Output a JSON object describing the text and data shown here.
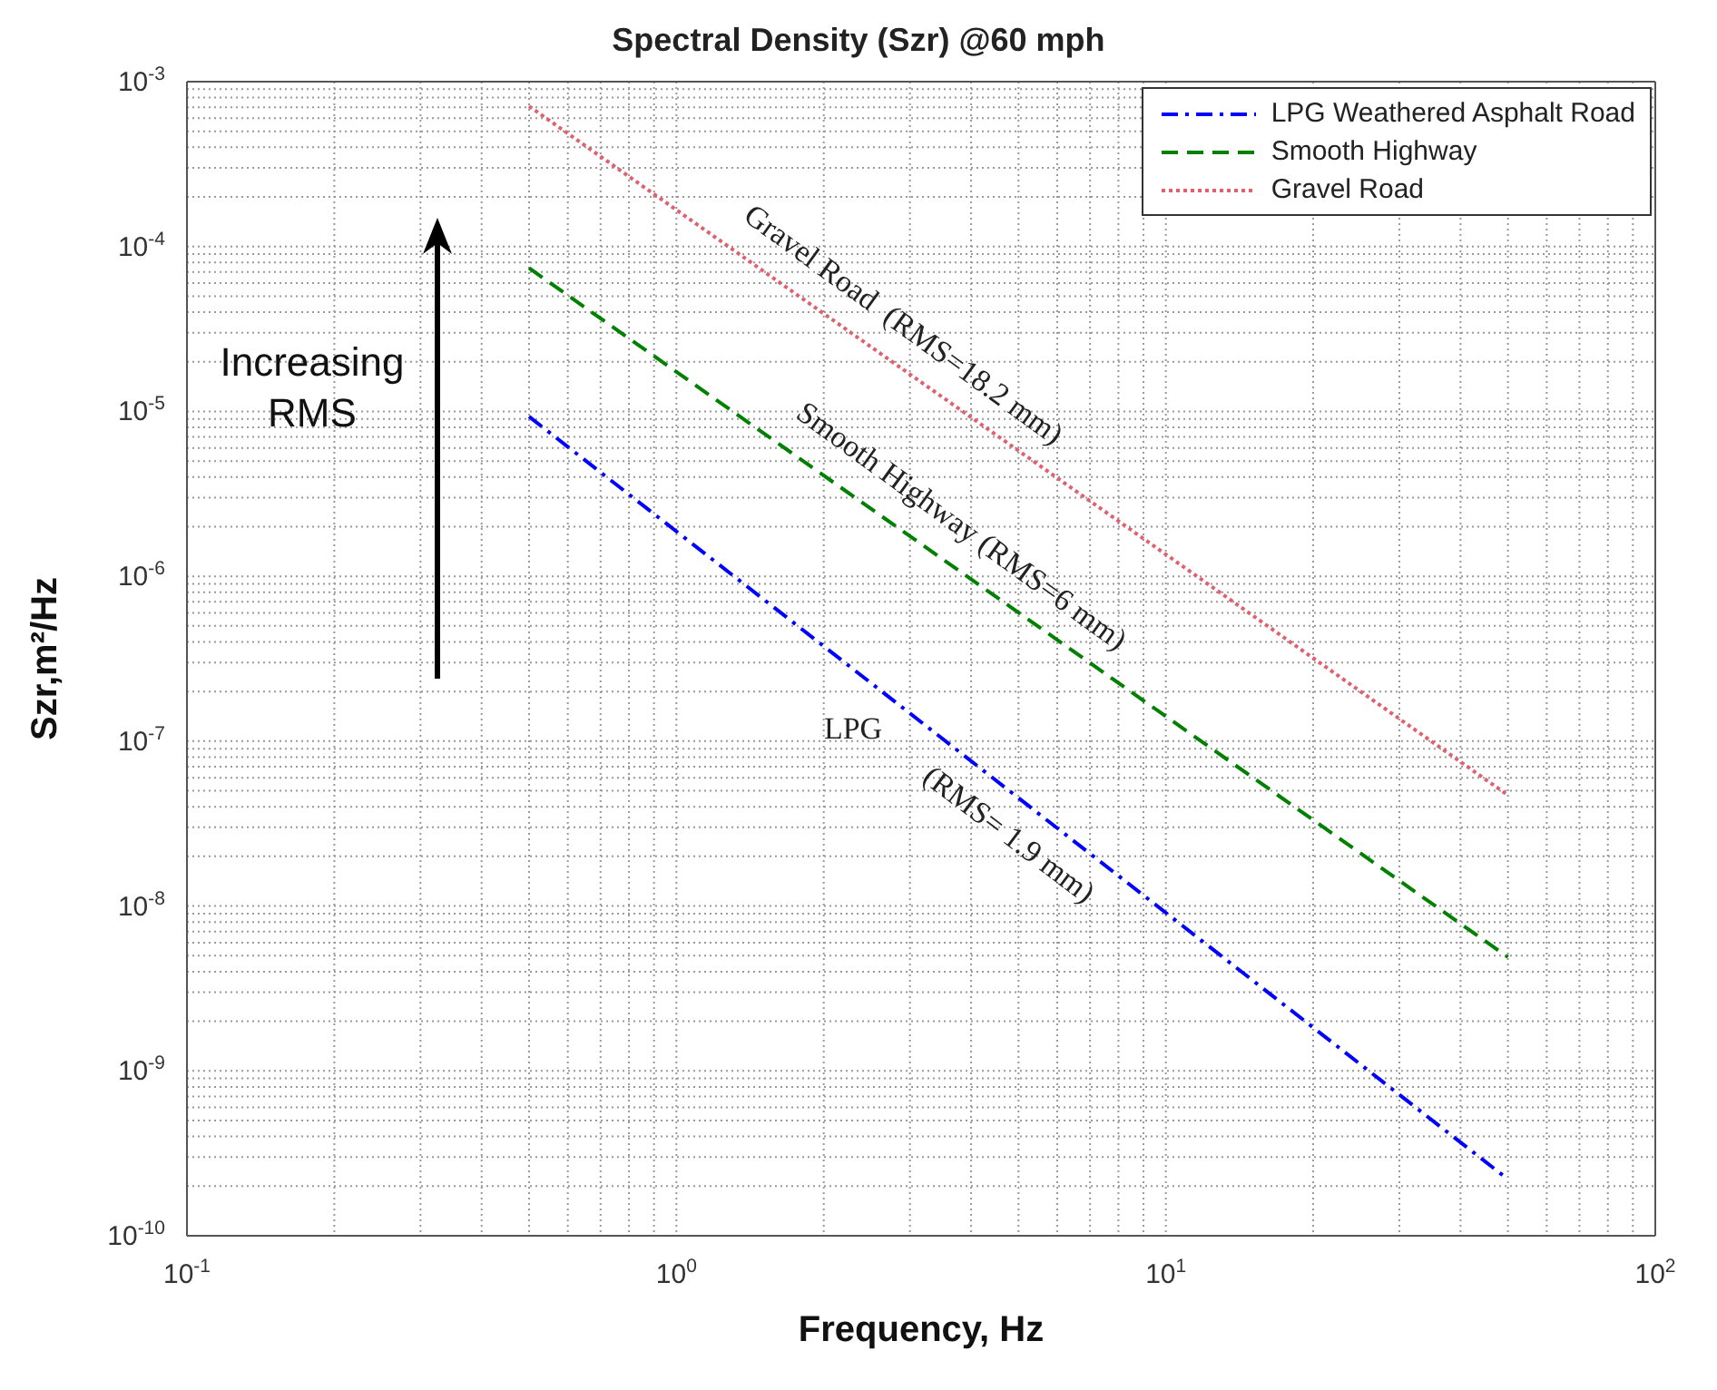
{
  "chart_data": {
    "type": "line",
    "title": "Spectral Density (Szr) @60 mph",
    "xlabel": "Frequency, Hz",
    "ylabel": "Szr,m²/Hz",
    "log": "xy",
    "grid": true,
    "legend": "top right",
    "marker": "none",
    "xlim": [
      0.1,
      100
    ],
    "ylim": [
      1e-10,
      0.001
    ],
    "xticks": [
      {
        "value": 0.1,
        "label": "10$^{-1}$"
      },
      {
        "value": 1,
        "label": "10$^{0}$"
      },
      {
        "value": 10,
        "label": "10$^{1}$"
      },
      {
        "value": 100,
        "label": "10$^{2}$"
      }
    ],
    "yticks": [
      {
        "value": 1e-10,
        "label": "10$^{-10}$"
      },
      {
        "value": 1e-09,
        "label": "10$^{-9}$"
      },
      {
        "value": 1e-08,
        "label": "10$^{-8}$"
      },
      {
        "value": 1e-07,
        "label": "10$^{-7}$"
      },
      {
        "value": 1e-06,
        "label": "10$^{-6}$"
      },
      {
        "value": 1e-05,
        "label": "10$^{-5}$"
      },
      {
        "value": 0.0001,
        "label": "10$^{-4}$"
      },
      {
        "value": 0.001,
        "label": "10$^{-3}$"
      }
    ],
    "x": [
      0.5,
      50
    ],
    "series": [
      {
        "name": "LPG Weathered Asphalt Road",
        "color": "#0000ff",
        "line_style": "dashdot",
        "values": [
          9.3e-06,
          2.2e-10
        ]
      },
      {
        "name": "Smooth Highway",
        "color": "#008000",
        "line_style": "dashed",
        "values": [
          7.4e-05,
          4.9e-09
        ]
      },
      {
        "name": "Gravel Road",
        "color": "#e06070",
        "line_style": "dotted",
        "values": [
          0.00071,
          4.7e-08
        ]
      }
    ],
    "annotations": [
      "Gravel Road  (RMS=18.2 mm)",
      "Smooth Highway (RMS=6 mm)",
      "LPG",
      "(RMS= 1.9 mm)",
      "Increasing RMS"
    ]
  }
}
